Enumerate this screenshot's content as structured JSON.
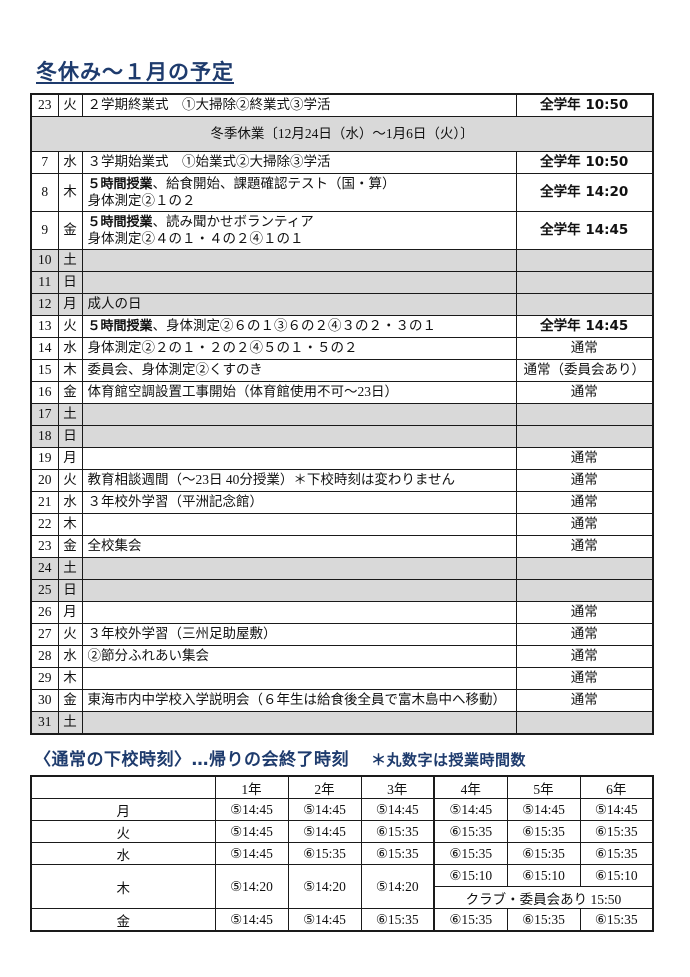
{
  "title": "冬休み～１月の予定",
  "colors": {
    "accent_navy": "#1e3b6d",
    "row_gray": "#d9d9d9",
    "border": "#1a1a1a"
  },
  "schedule_table": {
    "rows": [
      {
        "date": "23",
        "day": "火",
        "desc": "２学期終業式　①大掃除②終業式③学活",
        "status": "全学年 10:50",
        "status_bold": true
      },
      {
        "band": true,
        "text": "冬季休業〔12月24日（水）～1月6日（火）〕"
      },
      {
        "date": "7",
        "day": "水",
        "desc": "３学期始業式　①始業式②大掃除③学活",
        "status": "全学年 10:50",
        "status_bold": true
      },
      {
        "date": "8",
        "day": "木",
        "desc_bold": "５時間授業",
        "desc": "、給食開始、課題確認テスト（国・算）",
        "desc2": "身体測定②１の２",
        "status": "全学年 14:20",
        "status_bold": true
      },
      {
        "date": "9",
        "day": "金",
        "desc_bold": "５時間授業",
        "desc": "、読み聞かせボランティア",
        "desc2": "身体測定②４の１・４の２④１の１",
        "status": "全学年 14:45",
        "status_bold": true
      },
      {
        "date": "10",
        "day": "土",
        "gray": true
      },
      {
        "date": "11",
        "day": "日",
        "gray": true
      },
      {
        "date": "12",
        "day": "月",
        "desc": "成人の日",
        "gray": true
      },
      {
        "date": "13",
        "day": "火",
        "desc_bold": "５時間授業",
        "desc": "、身体測定②６の１③６の２④３の２・３の１",
        "status": "全学年 14:45",
        "status_bold": true
      },
      {
        "date": "14",
        "day": "水",
        "desc": "身体測定②２の１・２の２④５の１・５の２",
        "status": "通常"
      },
      {
        "date": "15",
        "day": "木",
        "desc": "委員会、身体測定②くすのき",
        "status": "通常（委員会あり）"
      },
      {
        "date": "16",
        "day": "金",
        "desc": "体育館空調設置工事開始（体育館使用不可～23日）",
        "status": "通常"
      },
      {
        "date": "17",
        "day": "土",
        "gray": true
      },
      {
        "date": "18",
        "day": "日",
        "gray": true
      },
      {
        "date": "19",
        "day": "月",
        "status": "通常"
      },
      {
        "date": "20",
        "day": "火",
        "desc": "教育相談週間（～23日 40分授業）＊下校時刻は変わりません",
        "status": "通常"
      },
      {
        "date": "21",
        "day": "水",
        "desc": "３年校外学習（平洲記念館）",
        "status": "通常"
      },
      {
        "date": "22",
        "day": "木",
        "status": "通常"
      },
      {
        "date": "23",
        "day": "金",
        "desc": "全校集会",
        "status": "通常"
      },
      {
        "date": "24",
        "day": "土",
        "gray": true
      },
      {
        "date": "25",
        "day": "日",
        "gray": true
      },
      {
        "date": "26",
        "day": "月",
        "status": "通常"
      },
      {
        "date": "27",
        "day": "火",
        "desc": "３年校外学習（三州足助屋敷）",
        "status": "通常"
      },
      {
        "date": "28",
        "day": "水",
        "desc": "②節分ふれあい集会",
        "status": "通常"
      },
      {
        "date": "29",
        "day": "木",
        "status": "通常"
      },
      {
        "date": "30",
        "day": "金",
        "desc": "東海市内中学校入学説明会（６年生は給食後全員で富木島中へ移動）",
        "status": "通常"
      },
      {
        "date": "31",
        "day": "土",
        "gray": true
      }
    ]
  },
  "dismissal": {
    "heading": "〈通常の下校時刻〉…帰りの会終了時刻",
    "note": "＊丸数字は授業時間数",
    "headers": [
      "",
      "1年",
      "2年",
      "3年",
      "4年",
      "5年",
      "6年"
    ],
    "rows": [
      {
        "day": "月",
        "cells": [
          "⑤14:45",
          "⑤14:45",
          "⑤14:45",
          "⑤14:45",
          "⑤14:45",
          "⑤14:45"
        ]
      },
      {
        "day": "火",
        "cells": [
          "⑤14:45",
          "⑤14:45",
          "⑥15:35",
          "⑥15:35",
          "⑥15:35",
          "⑥15:35"
        ]
      },
      {
        "day": "水",
        "cells": [
          "⑤14:45",
          "⑥15:35",
          "⑥15:35",
          "⑥15:35",
          "⑥15:35",
          "⑥15:35"
        ]
      },
      {
        "day": "木",
        "special": true,
        "left_cells": [
          "⑤14:20",
          "⑤14:20",
          "⑤14:20"
        ],
        "right_top": [
          "⑥15:10",
          "⑥15:10",
          "⑥15:10"
        ],
        "right_bottom": "クラブ・委員会あり 15:50"
      },
      {
        "day": "金",
        "cells": [
          "⑤14:45",
          "⑤14:45",
          "⑥15:35",
          "⑥15:35",
          "⑥15:35",
          "⑥15:35"
        ]
      }
    ]
  }
}
